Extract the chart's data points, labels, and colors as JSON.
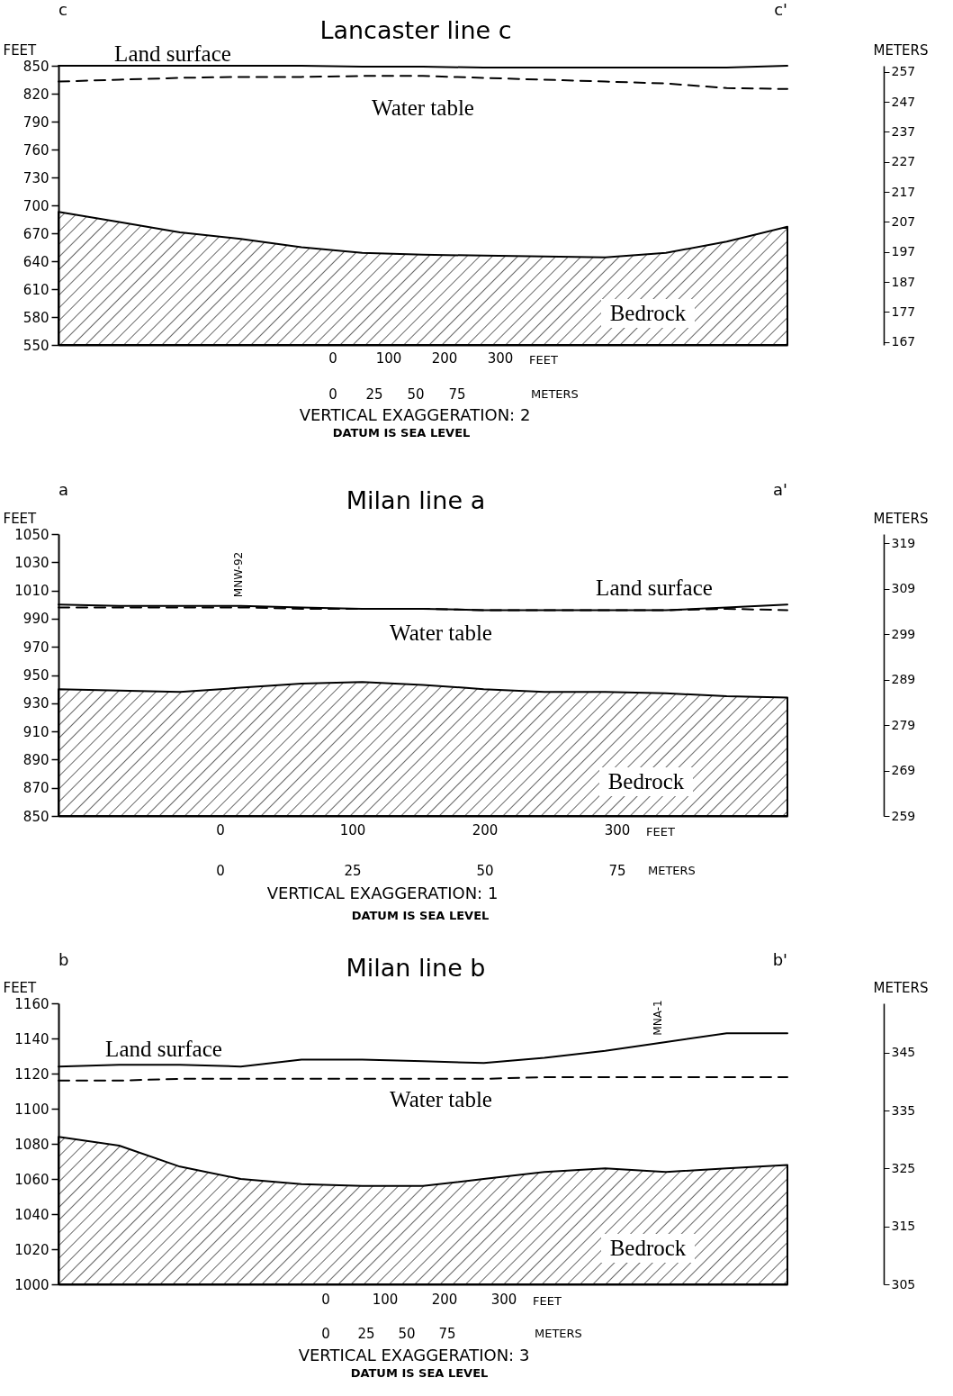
{
  "chart_data": [
    {
      "type": "line",
      "title": "Lancaster line c",
      "ylabel": "FEET",
      "y2label": "METERS",
      "categories": [
        null,
        null,
        null,
        null,
        null,
        null,
        null,
        null,
        null,
        null,
        null,
        null,
        null
      ],
      "series": [
        {
          "name": "Land surface",
          "type": "line",
          "color": "#000000",
          "values": [
            850,
            850,
            850,
            850,
            850,
            849,
            849,
            848,
            848,
            848,
            848,
            848,
            850
          ]
        },
        {
          "name": "Water table",
          "type": "line",
          "line_style": "dashed",
          "color": "#000000",
          "values": [
            833,
            835,
            837,
            838,
            838,
            839,
            839,
            837,
            835,
            833,
            831,
            826,
            825
          ]
        },
        {
          "name": "Bedrock",
          "type": "area",
          "color": "#000000",
          "values": [
            693,
            682,
            671,
            664,
            655,
            649,
            647,
            646,
            645,
            644,
            649,
            661,
            677
          ]
        }
      ],
      "ylim": [
        550,
        850
      ],
      "yticks": [
        550,
        580,
        610,
        640,
        670,
        700,
        730,
        760,
        790,
        820,
        850
      ],
      "y2lim": [
        166,
        259
      ],
      "y2ticks": [
        167,
        177,
        187,
        197,
        207,
        217,
        227,
        237,
        247,
        257
      ],
      "annotations": [
        "c",
        "c'",
        "0",
        "100",
        "200",
        "300",
        "FEET",
        "0",
        "25",
        "50",
        "75",
        "METERS",
        "VERTICAL EXAGGERATION: 2",
        "DATUM IS SEA LEVEL"
      ]
    },
    {
      "type": "line",
      "title": "Milan line a",
      "ylabel": "FEET",
      "y2label": "METERS",
      "categories": [
        null,
        null,
        null,
        null,
        null,
        null,
        null,
        null,
        null,
        null,
        null,
        null,
        null
      ],
      "series": [
        {
          "name": "Land surface",
          "type": "line",
          "color": "#000000",
          "values": [
            1000,
            999,
            999,
            999,
            998,
            997,
            997,
            996,
            996,
            996,
            996,
            998,
            1000
          ]
        },
        {
          "name": "Water table",
          "type": "line",
          "line_style": "dashed",
          "color": "#000000",
          "values": [
            998,
            998,
            998,
            998,
            997,
            997,
            997,
            996,
            996,
            996,
            996,
            997,
            996
          ]
        },
        {
          "name": "Bedrock",
          "type": "area",
          "color": "#000000",
          "values": [
            940,
            939,
            938,
            941,
            944,
            945,
            943,
            940,
            938,
            938,
            937,
            935,
            934
          ]
        }
      ],
      "ylim": [
        850,
        1050
      ],
      "yticks": [
        850,
        870,
        890,
        910,
        930,
        950,
        970,
        990,
        1010,
        1030,
        1050
      ],
      "y2lim": [
        259,
        321
      ],
      "y2ticks": [
        259,
        269,
        279,
        289,
        299,
        309,
        319
      ],
      "annotations": [
        "a",
        "a'",
        "0",
        "100",
        "200",
        "300",
        "FEET",
        "0",
        "25",
        "50",
        "75",
        "METERS",
        "VERTICAL EXAGGERATION: 1",
        "DATUM IS SEA LEVEL",
        "MNW-92"
      ]
    },
    {
      "type": "line",
      "title": "Milan line b",
      "ylabel": "FEET",
      "y2label": "METERS",
      "categories": [
        null,
        null,
        null,
        null,
        null,
        null,
        null,
        null,
        null,
        null,
        null,
        null,
        null
      ],
      "series": [
        {
          "name": "Land surface",
          "type": "line",
          "color": "#000000",
          "values": [
            1124,
            1125,
            1125,
            1124,
            1128,
            1128,
            1127,
            1126,
            1129,
            1133,
            1138,
            1143,
            1143
          ]
        },
        {
          "name": "Water table",
          "type": "line",
          "line_style": "dashed",
          "color": "#000000",
          "values": [
            1116,
            1116,
            1117,
            1117,
            1117,
            1117,
            1117,
            1117,
            1118,
            1118,
            1118,
            1118,
            1118
          ]
        },
        {
          "name": "Bedrock",
          "type": "area",
          "color": "#000000",
          "values": [
            1084,
            1079,
            1067,
            1060,
            1057,
            1056,
            1056,
            1060,
            1064,
            1066,
            1064,
            1066,
            1068
          ]
        }
      ],
      "ylim": [
        1000,
        1160
      ],
      "yticks": [
        1000,
        1020,
        1040,
        1060,
        1080,
        1100,
        1120,
        1140,
        1160
      ],
      "y2lim": [
        305,
        353.5
      ],
      "y2ticks": [
        305,
        315,
        325,
        335,
        345
      ],
      "annotations": [
        "b",
        "b'",
        "0",
        "100",
        "200",
        "300",
        "FEET",
        "0",
        "25",
        "50",
        "75",
        "METERS",
        "VERTICAL EXAGGERATION: 3",
        "DATUM IS SEA LEVEL",
        "MNA-1"
      ]
    }
  ]
}
